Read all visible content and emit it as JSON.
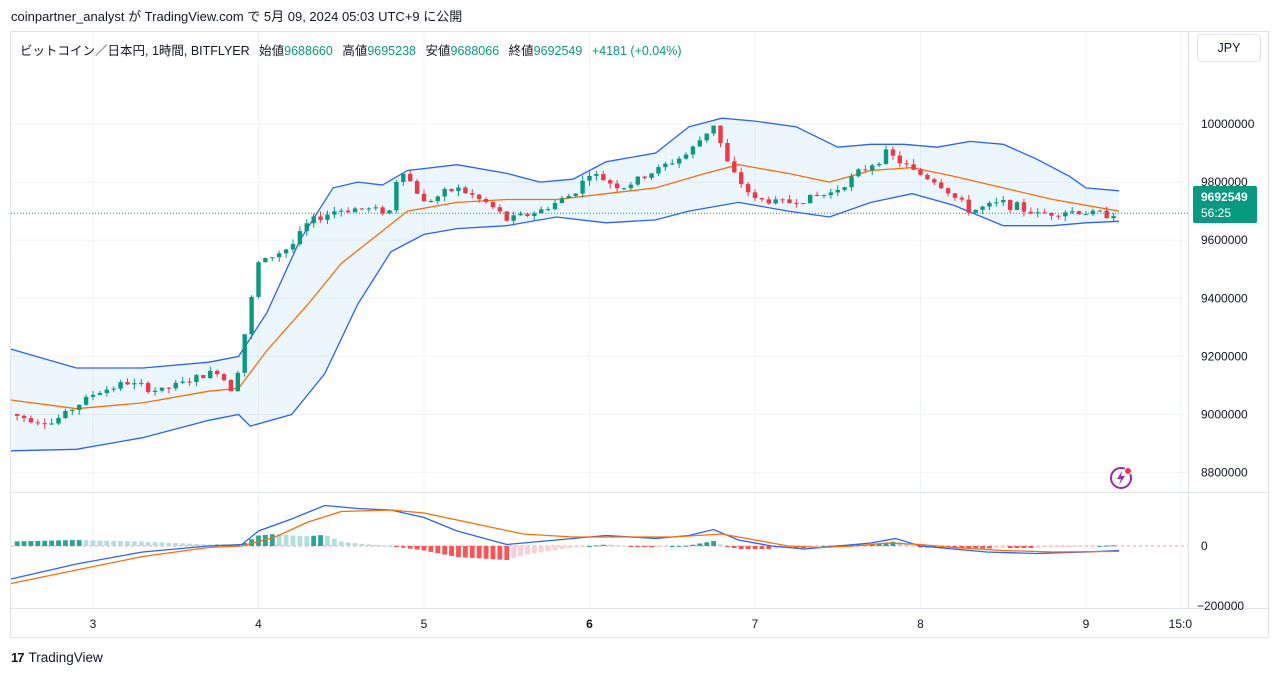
{
  "header": {
    "publish_line": "coinpartner_analyst が TradingView.com で 5月 09, 2024 05:03 UTC+9 に公開"
  },
  "legend": {
    "symbol": "ビットコイン／日本円, 1時間, BITFLYER",
    "open_label": "始値",
    "open_value": "9688660",
    "high_label": "高値",
    "high_value": "9695238",
    "low_label": "安値",
    "low_value": "9688066",
    "close_label": "終値",
    "close_value": "9692549",
    "change": "+4181 (+0.04%)"
  },
  "currency_button": "JPY",
  "last_price": {
    "value": "9692549",
    "countdown": "56:25"
  },
  "footer": {
    "brand": "TradingView"
  },
  "colors": {
    "up": "#089981",
    "down": "#f23645",
    "bb_band": "#2962ff",
    "bb_mid": "#ff6d00",
    "bb_fill": "#2196f3",
    "macd": "#2962ff",
    "signal": "#ff6d00",
    "hist_up_strong": "#26a69a",
    "hist_up_weak": "#b2dfdb",
    "hist_down_strong": "#ff5252",
    "hist_down_weak": "#ffcdd2"
  },
  "chart_data": [
    {
      "type": "candlestick",
      "pane": "price",
      "series_label": "ビットコイン／日本円, 1時間, BITFLYER",
      "y_ticks": [
        "10000000",
        "9800000",
        "9600000",
        "9400000",
        "9200000",
        "9000000",
        "8800000"
      ],
      "ylim": [
        8740000,
        10210000
      ],
      "x_ticks": [
        "3",
        "4",
        "5",
        "6",
        "7",
        "8",
        "9",
        "15:0"
      ],
      "xlim": [
        2.5,
        9.6
      ],
      "last_value": 9692549,
      "close_path": [
        [
          2.5,
          9000000
        ],
        [
          2.75,
          8970000
        ],
        [
          3.0,
          9070000
        ],
        [
          3.2,
          9110000
        ],
        [
          3.4,
          9080000
        ],
        [
          3.6,
          9120000
        ],
        [
          3.75,
          9150000
        ],
        [
          3.85,
          9080000
        ],
        [
          3.9,
          9230000
        ],
        [
          4.0,
          9520000
        ],
        [
          4.2,
          9580000
        ],
        [
          4.3,
          9660000
        ],
        [
          4.45,
          9700000
        ],
        [
          4.6,
          9710000
        ],
        [
          4.8,
          9700000
        ],
        [
          4.85,
          9860000
        ],
        [
          5.0,
          9730000
        ],
        [
          5.2,
          9780000
        ],
        [
          5.4,
          9720000
        ],
        [
          5.5,
          9670000
        ],
        [
          5.7,
          9700000
        ],
        [
          5.9,
          9760000
        ],
        [
          6.0,
          9830000
        ],
        [
          6.2,
          9780000
        ],
        [
          6.4,
          9840000
        ],
        [
          6.6,
          9900000
        ],
        [
          6.75,
          10000000
        ],
        [
          6.85,
          9840000
        ],
        [
          7.0,
          9740000
        ],
        [
          7.2,
          9730000
        ],
        [
          7.45,
          9760000
        ],
        [
          7.6,
          9820000
        ],
        [
          7.8,
          9900000
        ],
        [
          7.95,
          9840000
        ],
        [
          8.1,
          9800000
        ],
        [
          8.3,
          9700000
        ],
        [
          8.5,
          9730000
        ],
        [
          8.7,
          9690000
        ],
        [
          8.9,
          9700000
        ],
        [
          9.1,
          9690000
        ],
        [
          9.2,
          9692549
        ]
      ],
      "bollinger": {
        "upper": [
          [
            2.5,
            9225000
          ],
          [
            2.9,
            9160000
          ],
          [
            3.3,
            9160000
          ],
          [
            3.7,
            9180000
          ],
          [
            3.88,
            9200000
          ],
          [
            4.05,
            9350000
          ],
          [
            4.25,
            9600000
          ],
          [
            4.45,
            9780000
          ],
          [
            4.6,
            9800000
          ],
          [
            4.75,
            9790000
          ],
          [
            4.9,
            9840000
          ],
          [
            5.2,
            9860000
          ],
          [
            5.5,
            9830000
          ],
          [
            5.7,
            9800000
          ],
          [
            5.9,
            9810000
          ],
          [
            6.1,
            9870000
          ],
          [
            6.4,
            9900000
          ],
          [
            6.6,
            9990000
          ],
          [
            6.8,
            10020000
          ],
          [
            7.0,
            10010000
          ],
          [
            7.25,
            9990000
          ],
          [
            7.5,
            9920000
          ],
          [
            7.7,
            9930000
          ],
          [
            7.9,
            9930000
          ],
          [
            8.1,
            9920000
          ],
          [
            8.3,
            9940000
          ],
          [
            8.5,
            9930000
          ],
          [
            8.7,
            9880000
          ],
          [
            8.9,
            9820000
          ],
          [
            9.0,
            9780000
          ],
          [
            9.2,
            9770000
          ]
        ],
        "middle": [
          [
            2.5,
            9050000
          ],
          [
            2.9,
            9020000
          ],
          [
            3.3,
            9040000
          ],
          [
            3.7,
            9080000
          ],
          [
            3.88,
            9090000
          ],
          [
            4.05,
            9220000
          ],
          [
            4.3,
            9380000
          ],
          [
            4.5,
            9520000
          ],
          [
            4.7,
            9610000
          ],
          [
            4.9,
            9700000
          ],
          [
            5.2,
            9730000
          ],
          [
            5.5,
            9740000
          ],
          [
            5.8,
            9740000
          ],
          [
            6.1,
            9760000
          ],
          [
            6.4,
            9780000
          ],
          [
            6.7,
            9830000
          ],
          [
            6.9,
            9860000
          ],
          [
            7.2,
            9830000
          ],
          [
            7.45,
            9800000
          ],
          [
            7.7,
            9840000
          ],
          [
            7.95,
            9850000
          ],
          [
            8.2,
            9820000
          ],
          [
            8.5,
            9780000
          ],
          [
            8.8,
            9740000
          ],
          [
            9.0,
            9720000
          ],
          [
            9.2,
            9700000
          ]
        ],
        "lower": [
          [
            2.5,
            8875000
          ],
          [
            2.9,
            8880000
          ],
          [
            3.3,
            8920000
          ],
          [
            3.7,
            8980000
          ],
          [
            3.88,
            9000000
          ],
          [
            3.95,
            8960000
          ],
          [
            4.2,
            9000000
          ],
          [
            4.4,
            9140000
          ],
          [
            4.6,
            9380000
          ],
          [
            4.8,
            9560000
          ],
          [
            5.0,
            9620000
          ],
          [
            5.2,
            9640000
          ],
          [
            5.5,
            9650000
          ],
          [
            5.8,
            9680000
          ],
          [
            6.1,
            9660000
          ],
          [
            6.4,
            9670000
          ],
          [
            6.6,
            9700000
          ],
          [
            6.9,
            9730000
          ],
          [
            7.2,
            9700000
          ],
          [
            7.45,
            9680000
          ],
          [
            7.7,
            9730000
          ],
          [
            7.95,
            9760000
          ],
          [
            8.2,
            9720000
          ],
          [
            8.5,
            9650000
          ],
          [
            8.8,
            9650000
          ],
          [
            9.0,
            9660000
          ],
          [
            9.2,
            9665000
          ]
        ]
      }
    },
    {
      "type": "histogram+line",
      "pane": "indicator",
      "y_ticks": [
        "0",
        "−200000"
      ],
      "ylim": [
        -200000,
        150000
      ],
      "xlim": [
        2.5,
        9.6
      ],
      "macd": [
        [
          2.5,
          -110000
        ],
        [
          2.9,
          -60000
        ],
        [
          3.3,
          -20000
        ],
        [
          3.7,
          0
        ],
        [
          3.9,
          5000
        ],
        [
          4.0,
          50000
        ],
        [
          4.2,
          90000
        ],
        [
          4.4,
          135000
        ],
        [
          4.6,
          125000
        ],
        [
          4.8,
          120000
        ],
        [
          5.0,
          95000
        ],
        [
          5.2,
          50000
        ],
        [
          5.5,
          5000
        ],
        [
          5.8,
          20000
        ],
        [
          6.1,
          35000
        ],
        [
          6.4,
          25000
        ],
        [
          6.6,
          35000
        ],
        [
          6.75,
          55000
        ],
        [
          6.9,
          20000
        ],
        [
          7.1,
          0
        ],
        [
          7.3,
          -10000
        ],
        [
          7.5,
          0
        ],
        [
          7.7,
          10000
        ],
        [
          7.85,
          25000
        ],
        [
          8.0,
          0
        ],
        [
          8.2,
          -10000
        ],
        [
          8.4,
          -20000
        ],
        [
          8.7,
          -25000
        ],
        [
          9.0,
          -20000
        ],
        [
          9.2,
          -15000
        ]
      ],
      "signal": [
        [
          2.5,
          -125000
        ],
        [
          2.9,
          -80000
        ],
        [
          3.3,
          -35000
        ],
        [
          3.7,
          -5000
        ],
        [
          3.9,
          0
        ],
        [
          4.1,
          30000
        ],
        [
          4.3,
          80000
        ],
        [
          4.5,
          115000
        ],
        [
          4.8,
          120000
        ],
        [
          5.0,
          110000
        ],
        [
          5.3,
          75000
        ],
        [
          5.6,
          40000
        ],
        [
          5.9,
          30000
        ],
        [
          6.2,
          30000
        ],
        [
          6.5,
          30000
        ],
        [
          6.8,
          40000
        ],
        [
          7.0,
          20000
        ],
        [
          7.2,
          0
        ],
        [
          7.4,
          -5000
        ],
        [
          7.6,
          0
        ],
        [
          7.8,
          10000
        ],
        [
          8.0,
          5000
        ],
        [
          8.2,
          -5000
        ],
        [
          8.5,
          -15000
        ],
        [
          8.8,
          -20000
        ],
        [
          9.2,
          -18000
        ]
      ]
    }
  ]
}
